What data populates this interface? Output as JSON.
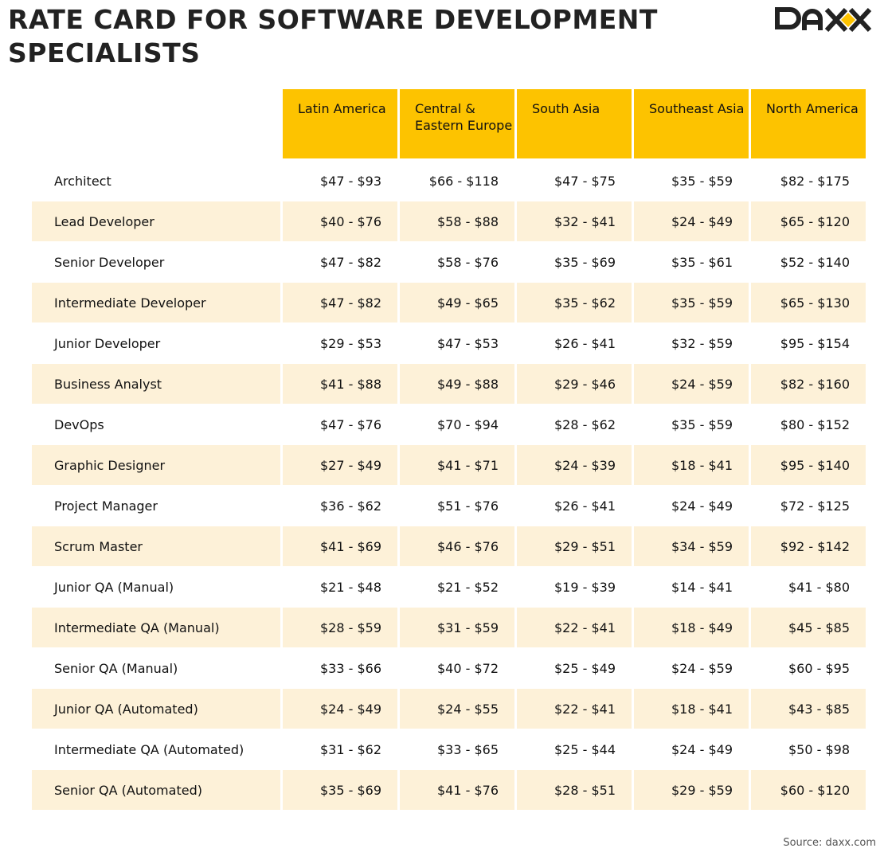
{
  "title": "RATE CARD FOR SOFTWARE DEVELOPMENT SPECIALISTS",
  "logo_text": "DAXX",
  "colors": {
    "header": "#fdc300",
    "stripe": "#fdf1d8",
    "logo_accent": "#fdc300"
  },
  "columns": [
    "Latin America",
    "Central & Eastern Europe",
    "South Asia",
    "Southeast Asia",
    "North America"
  ],
  "rows": [
    {
      "role": "Architect",
      "values": [
        "$47 - $93",
        "$66 - $118",
        "$47 - $75",
        "$35 - $59",
        "$82 - $175"
      ]
    },
    {
      "role": "Lead Developer",
      "values": [
        "$40 - $76",
        "$58 - $88",
        "$32 - $41",
        "$24 - $49",
        "$65 - $120"
      ]
    },
    {
      "role": "Senior Developer",
      "values": [
        "$47 - $82",
        "$58 - $76",
        "$35 - $69",
        "$35 - $61",
        "$52 - $140"
      ]
    },
    {
      "role": "Intermediate Developer",
      "values": [
        "$47 - $82",
        "$49 - $65",
        "$35 - $62",
        "$35 - $59",
        "$65 - $130"
      ]
    },
    {
      "role": "Junior Developer",
      "values": [
        "$29 - $53",
        "$47 - $53",
        "$26 - $41",
        "$32 - $59",
        "$95 - $154"
      ]
    },
    {
      "role": "Business Analyst",
      "values": [
        "$41 - $88",
        "$49 - $88",
        "$29 - $46",
        "$24 - $59",
        "$82 - $160"
      ]
    },
    {
      "role": "DevOps",
      "values": [
        "$47 - $76",
        "$70 - $94",
        "$28 - $62",
        "$35 - $59",
        "$80 - $152"
      ]
    },
    {
      "role": "Graphic Designer",
      "values": [
        "$27 - $49",
        "$41 - $71",
        "$24 - $39",
        "$18 - $41",
        "$95 - $140"
      ]
    },
    {
      "role": "Project Manager",
      "values": [
        "$36 - $62",
        "$51 - $76",
        "$26 - $41",
        "$24 - $49",
        "$72 - $125"
      ]
    },
    {
      "role": "Scrum Master",
      "values": [
        "$41 - $69",
        "$46 - $76",
        "$29 - $51",
        "$34 - $59",
        "$92 - $142"
      ]
    },
    {
      "role": "Junior QA (Manual)",
      "values": [
        "$21 - $48",
        "$21 - $52",
        "$19 - $39",
        "$14 - $41",
        "$41 - $80"
      ]
    },
    {
      "role": "Intermediate QA (Manual)",
      "values": [
        "$28 - $59",
        "$31 - $59",
        "$22 - $41",
        "$18 - $49",
        "$45 - $85"
      ]
    },
    {
      "role": "Senior QA (Manual)",
      "values": [
        "$33 - $66",
        "$40 - $72",
        "$25 - $49",
        "$24 - $59",
        "$60 - $95"
      ]
    },
    {
      "role": "Junior QA (Automated)",
      "values": [
        "$24 - $49",
        "$24 - $55",
        "$22 - $41",
        "$18 - $41",
        "$43 - $85"
      ]
    },
    {
      "role": "Intermediate QA (Automated)",
      "values": [
        "$31 - $62",
        "$33 - $65",
        "$25 - $44",
        "$24 - $49",
        "$50 - $98"
      ]
    },
    {
      "role": "Senior QA (Automated)",
      "values": [
        "$35 - $69",
        "$41 - $76",
        "$28 - $51",
        "$29 - $59",
        "$60 - $120"
      ]
    }
  ],
  "source": "Source: daxx.com"
}
